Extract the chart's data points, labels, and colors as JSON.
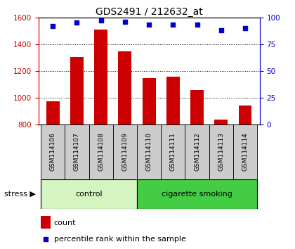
{
  "title": "GDS2491 / 212632_at",
  "samples": [
    "GSM114106",
    "GSM114107",
    "GSM114108",
    "GSM114109",
    "GSM114110",
    "GSM114111",
    "GSM114112",
    "GSM114113",
    "GSM114114"
  ],
  "counts": [
    975,
    1305,
    1510,
    1345,
    1145,
    1160,
    1055,
    835,
    940
  ],
  "percentile_ranks": [
    92,
    95,
    97,
    96,
    93,
    93,
    93,
    88,
    90
  ],
  "ylim_left": [
    800,
    1600
  ],
  "ylim_right": [
    0,
    100
  ],
  "yticks_left": [
    800,
    1000,
    1200,
    1400,
    1600
  ],
  "yticks_right": [
    0,
    25,
    50,
    75,
    100
  ],
  "groups": [
    {
      "label": "control",
      "start": 0,
      "end": 4,
      "color": "#d4f5c0"
    },
    {
      "label": "cigarette smoking",
      "start": 4,
      "end": 9,
      "color": "#44cc44"
    }
  ],
  "stress_label": "stress",
  "bar_color": "#cc0000",
  "dot_color": "#0000cc",
  "bar_width": 0.55,
  "tick_label_area_color": "#cccccc",
  "left_axis_color": "#cc0000",
  "right_axis_color": "#0000cc",
  "legend_count_color": "#cc0000",
  "legend_pct_color": "#0000cc",
  "bg_color": "#ffffff"
}
